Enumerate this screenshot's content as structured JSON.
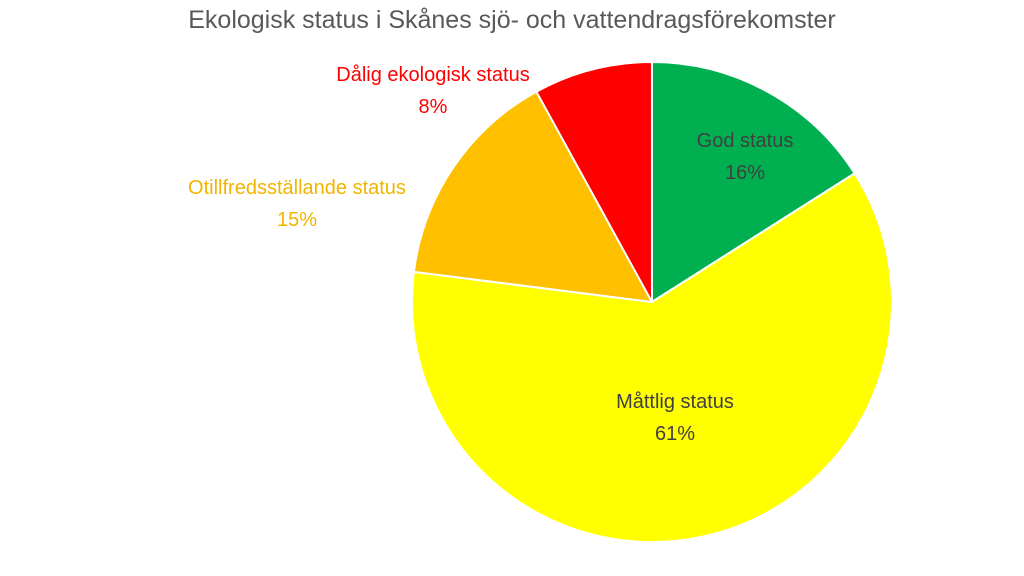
{
  "chart_data": {
    "type": "pie",
    "title": "Ekologisk status i Skånes sjö- och vattendragsförekomster",
    "slices": [
      {
        "label": "God status",
        "value": 16,
        "value_label": "16%",
        "color": "#00B050",
        "label_color": "#404040"
      },
      {
        "label": "Måttlig status",
        "value": 61,
        "value_label": "61%",
        "color": "#FFFF00",
        "label_color": "#404040"
      },
      {
        "label": "Otillfredsställande status",
        "value": 15,
        "value_label": "15%",
        "color": "#FFC000",
        "label_color": "#F2B400"
      },
      {
        "label": "Dålig ekologisk status",
        "value": 8,
        "value_label": "8%",
        "color": "#FF0000",
        "label_color": "#FF0000"
      }
    ],
    "start": "12 o'clock",
    "direction": "clockwise",
    "legend": "none"
  }
}
